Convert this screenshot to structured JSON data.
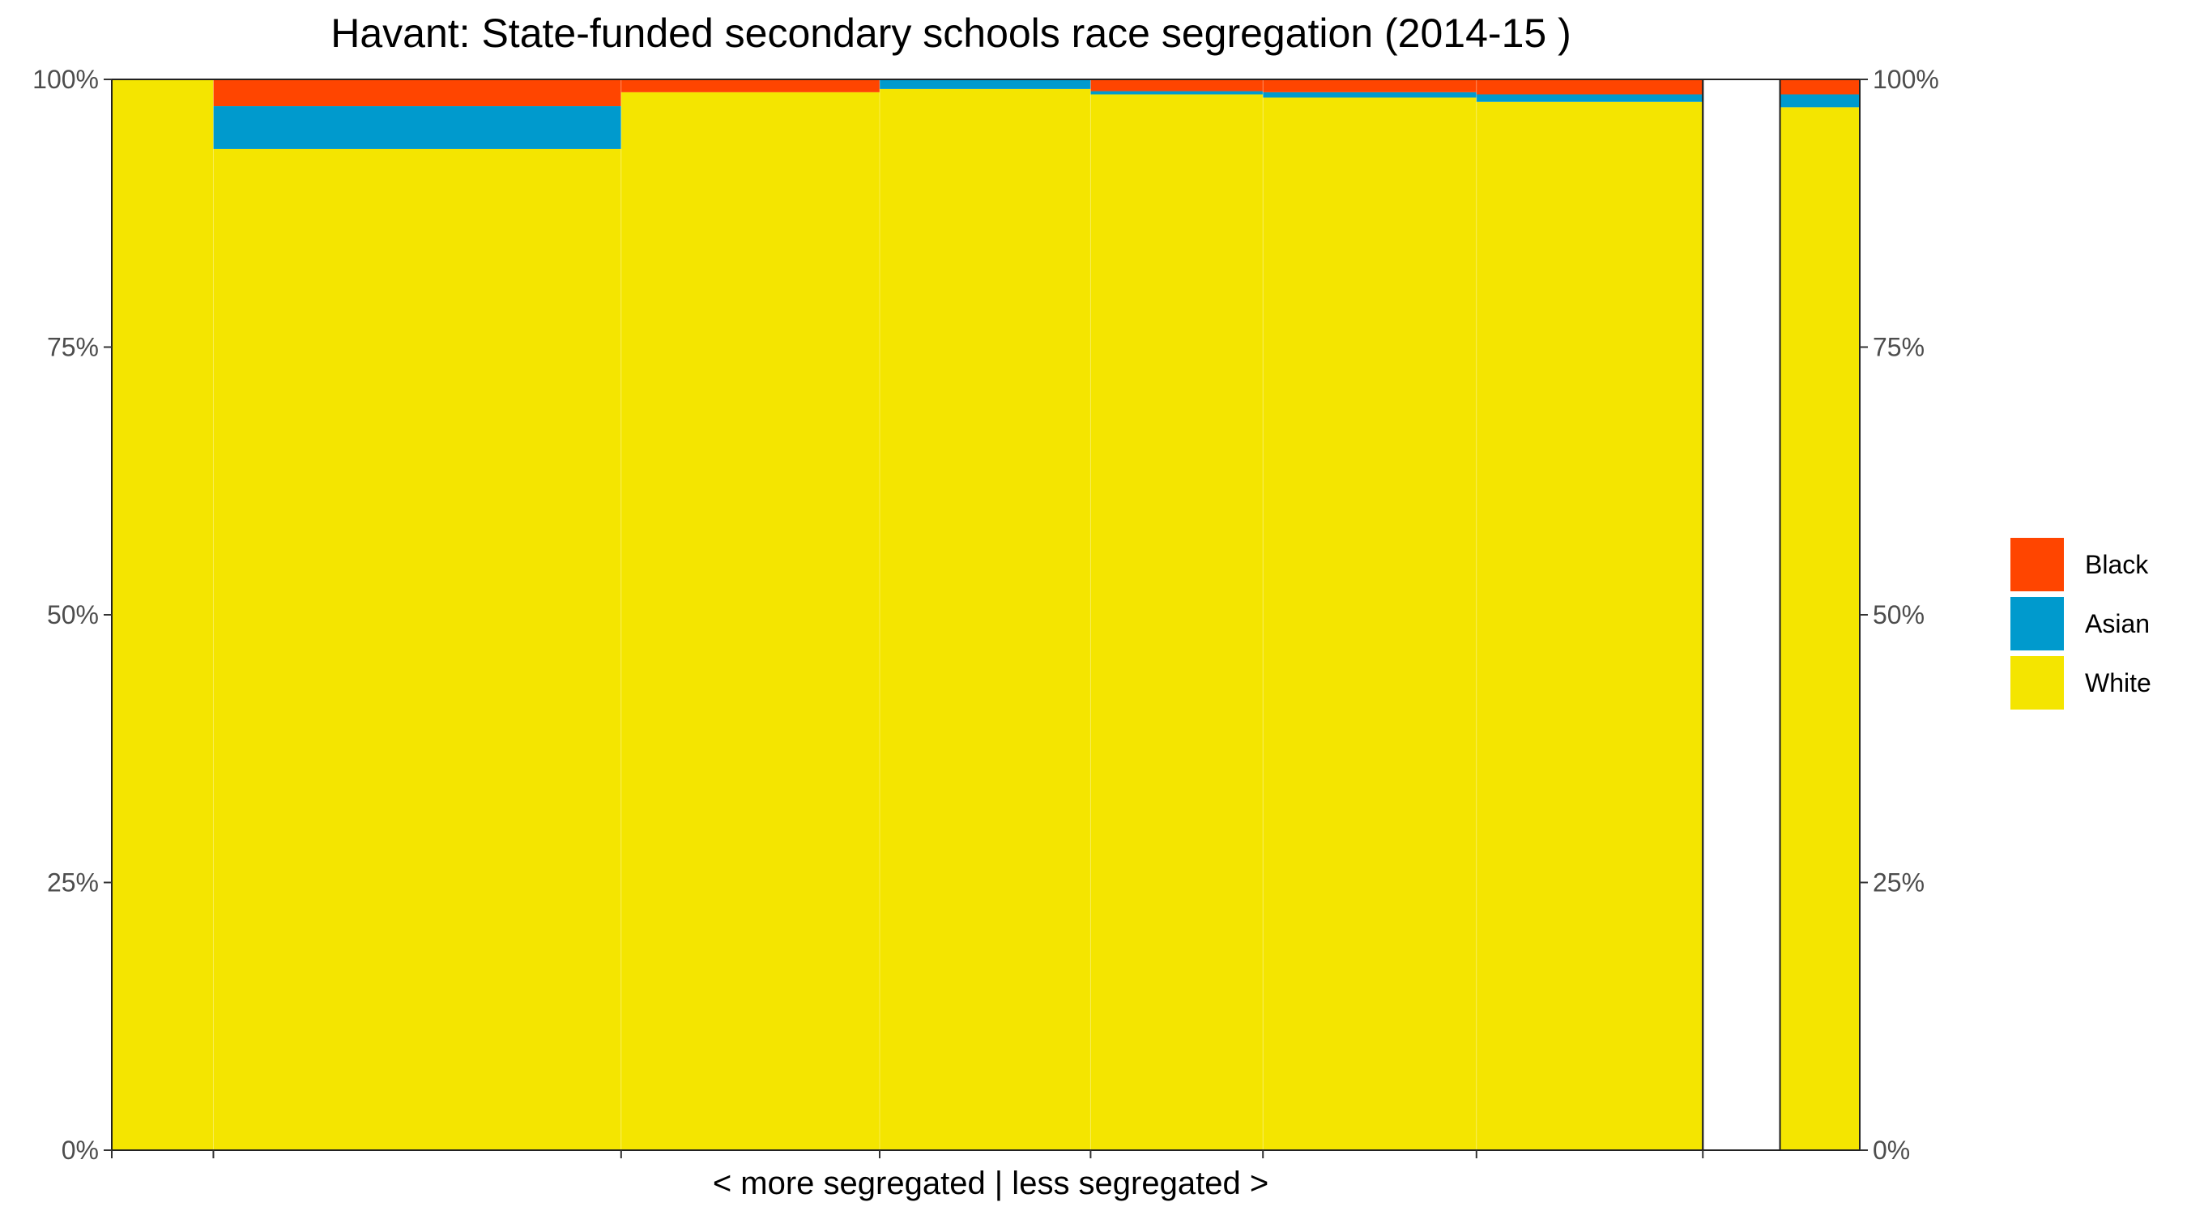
{
  "chart_data": {
    "type": "bar",
    "title": "Havant: State-funded secondary schools race segregation (2014-15 )",
    "xlabel": "< more segregated | less segregated >",
    "ylabel": "",
    "ylim": [
      0,
      1
    ],
    "yticks": [
      0,
      0.25,
      0.5,
      0.75,
      1
    ],
    "ytick_labels": [
      "0%",
      "25%",
      "50%",
      "75%",
      "100%"
    ],
    "grid": false,
    "legend_position": "right",
    "colors": {
      "White": "#F4E500",
      "Asian": "#009ACD",
      "Black": "#FF4500",
      "Other": "#FFFFFF"
    },
    "legend": [
      {
        "name": "Black",
        "color": "#FF4500"
      },
      {
        "name": "Asian",
        "color": "#009ACD"
      },
      {
        "name": "White",
        "color": "#F4E500"
      }
    ],
    "school_widths": [
      7.9,
      31.7,
      20.1,
      16.4,
      13.4,
      16.6,
      17.6
    ],
    "gap_width": 6.0,
    "total_width": 6.2,
    "series": [
      {
        "name": "White",
        "values": [
          1.0,
          0.935,
          0.988,
          0.991,
          0.986,
          0.983,
          0.979
        ],
        "total": 0.974
      },
      {
        "name": "Asian",
        "values": [
          0.0,
          0.04,
          0.0,
          0.009,
          0.003,
          0.005,
          0.007
        ],
        "total": 0.012
      },
      {
        "name": "Black",
        "values": [
          0.0,
          0.025,
          0.012,
          0.0,
          0.011,
          0.012,
          0.014
        ],
        "total": 0.014
      }
    ]
  }
}
